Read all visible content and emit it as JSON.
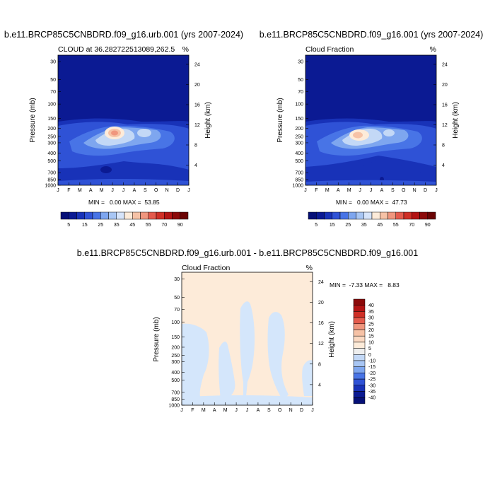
{
  "colors": {
    "darkblue": "#0b1a93",
    "deepblue": "#1832b8",
    "blue": "#2f52d6",
    "midblue": "#4874e6",
    "lightblue": "#7ea6ef",
    "paleblue": "#c3d8f6",
    "cream": "#fdebd9",
    "peach": "#f6c2a6",
    "salmon": "#f0967e",
    "red": "#e45a4c"
  },
  "chart_data": [
    {
      "type": "heatmap",
      "title": "b.e11.BRCP85C5CNBDRD.f09_g16.urb.001 (yrs 2007-2024)",
      "subtitle_left": "CLOUD at 36.282722513089,262.5",
      "units": "%",
      "ylabel": "Pressure (mb)",
      "ylabel_right": "Height (km)",
      "x_ticks": [
        "J",
        "F",
        "M",
        "A",
        "M",
        "J",
        "J",
        "A",
        "S",
        "O",
        "N",
        "D",
        "J"
      ],
      "y_ticks": [
        "30",
        "50",
        "70",
        "100",
        "150",
        "200",
        "250",
        "300",
        "400",
        "500",
        "700",
        "850",
        "1000"
      ],
      "y_ticks_right": [
        "24",
        "20",
        "16",
        "12",
        "8",
        "4"
      ],
      "min_max_text": "MIN =   0.00 MAX =  53.85",
      "min": 0.0,
      "max": 53.85,
      "colorbar_labels": [
        "5",
        "15",
        "25",
        "35",
        "45",
        "55",
        "70",
        "90"
      ]
    },
    {
      "type": "heatmap",
      "title": "b.e11.BRCP85C5CNBDRD.f09_g16.001 (yrs 2007-2024)",
      "subtitle_left": "Cloud Fraction",
      "units": "%",
      "ylabel": "Pressure (mb)",
      "ylabel_right": "Height (km)",
      "x_ticks": [
        "J",
        "F",
        "M",
        "A",
        "M",
        "J",
        "J",
        "A",
        "S",
        "O",
        "N",
        "D",
        "J"
      ],
      "y_ticks": [
        "30",
        "50",
        "70",
        "100",
        "150",
        "200",
        "250",
        "300",
        "400",
        "500",
        "700",
        "850",
        "1000"
      ],
      "y_ticks_right": [
        "24",
        "20",
        "16",
        "12",
        "8",
        "4"
      ],
      "min_max_text": "MIN =   0.00 MAX =  47.73",
      "min": 0.0,
      "max": 47.73,
      "colorbar_labels": [
        "5",
        "15",
        "25",
        "35",
        "45",
        "55",
        "70",
        "90"
      ]
    },
    {
      "type": "heatmap",
      "title": "b.e11.BRCP85C5CNBDRD.f09_g16.urb.001 - b.e11.BRCP85C5CNBDRD.f09_g16.001",
      "subtitle_left": "Cloud Fraction",
      "units": "%",
      "ylabel": "Pressure (mb)",
      "ylabel_right": "Height (km)",
      "x_ticks": [
        "J",
        "F",
        "M",
        "A",
        "M",
        "J",
        "J",
        "A",
        "S",
        "O",
        "N",
        "D",
        "J"
      ],
      "y_ticks": [
        "30",
        "50",
        "70",
        "100",
        "150",
        "200",
        "250",
        "300",
        "400",
        "500",
        "700",
        "850",
        "1000"
      ],
      "y_ticks_right": [
        "24",
        "20",
        "16",
        "12",
        "8",
        "4"
      ],
      "min_max_text": "MIN =  -7.33 MAX =   8.83",
      "min": -7.33,
      "max": 8.83,
      "colorbar_labels": [
        "40",
        "35",
        "30",
        "25",
        "20",
        "15",
        "10",
        "5",
        "0",
        "-10",
        "-15",
        "-20",
        "-25",
        "-30",
        "-35",
        "-40"
      ]
    }
  ]
}
